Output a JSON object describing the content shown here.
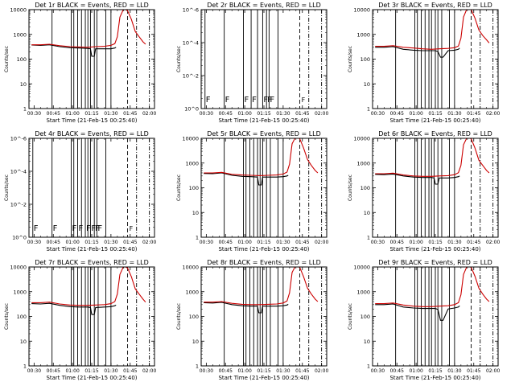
{
  "chart_data": [
    {
      "type": "line",
      "title": "Det 1r BLACK = Events, RED = LLD",
      "xlabel": "Start Time (21-Feb-15 00:25:40)",
      "ylabel": "Counts/sec",
      "x_ticks": [
        "00:30",
        "00:45",
        "01:00",
        "01:15",
        "01:30",
        "01:45",
        "02:00"
      ],
      "y_ticks": [
        "1",
        "10",
        "100",
        "1000",
        "10000"
      ],
      "ylim": [
        1,
        10000
      ],
      "ylog": true,
      "series": [
        {
          "color": "#000000",
          "x": [
            "00:28",
            "00:35",
            "00:42",
            "00:50",
            "00:58",
            "01:05",
            "01:12",
            "01:14",
            "01:15",
            "01:17",
            "01:18",
            "01:25",
            "01:30",
            "01:33",
            "01:34"
          ],
          "y": [
            370,
            360,
            380,
            320,
            290,
            280,
            270,
            260,
            130,
            130,
            260,
            260,
            260,
            280,
            300
          ]
        },
        {
          "color": "#cc0000",
          "x": [
            "00:28",
            "00:35",
            "00:42",
            "00:50",
            "00:58",
            "01:05",
            "01:12",
            "01:15",
            "01:18",
            "01:25",
            "01:30",
            "01:33",
            "01:35",
            "01:37",
            "01:40",
            "01:43",
            "01:46",
            "01:49",
            "01:52",
            "01:55",
            "01:57"
          ],
          "y": [
            380,
            380,
            400,
            350,
            320,
            310,
            300,
            310,
            320,
            330,
            360,
            420,
            800,
            5000,
            11000,
            9000,
            4000,
            1300,
            800,
            500,
            400
          ]
        }
      ],
      "vlines_solid": [
        "00:44",
        "00:59",
        "01:01",
        "01:04",
        "01:07",
        "01:10",
        "01:12",
        "01:14",
        "01:17",
        "01:19",
        "01:26",
        "01:30"
      ],
      "vlines_dash": [
        "01:43"
      ],
      "vlines_dashdot": [
        "01:50",
        "02:00"
      ],
      "flags": [],
      "flag_letter": "F",
      "bracket_label": ""
    },
    {
      "type": "line",
      "title": "Det 2r BLACK = Events, RED = LLD",
      "xlabel": "Start Time (21-Feb-15 00:25:40)",
      "ylabel": "Counts/sec",
      "x_ticks": [
        "00:30",
        "00:45",
        "01:00",
        "01:15",
        "01:30",
        "01:45",
        "02:00"
      ],
      "y_ticks": [
        "10^0",
        "10^-2",
        "10^-4",
        "10^-6"
      ],
      "ylim": [
        1,
        1e-06
      ],
      "ylog": true,
      "series": [],
      "vlines_solid": [
        "00:29",
        "00:44",
        "00:59",
        "01:05",
        "01:10",
        "01:14",
        "01:17",
        "01:19",
        "01:26"
      ],
      "vlines_dash": [
        "01:43"
      ],
      "vlines_dashdot": [
        "01:50",
        "02:00"
      ],
      "flags": [
        "00:29",
        "00:44",
        "00:59",
        "01:05",
        "01:14",
        "01:17",
        "01:19"
      ],
      "flag_letter": "F",
      "bracket_label": "F"
    },
    {
      "type": "line",
      "title": "Det 3r BLACK = Events, RED = LLD",
      "xlabel": "Start Time (21-Feb-15 00:25:40)",
      "ylabel": "Counts/sec",
      "x_ticks": [
        "00:30",
        "00:45",
        "01:00",
        "01:15",
        "01:30",
        "01:45",
        "02:00"
      ],
      "y_ticks": [
        "1",
        "10",
        "100",
        "1000",
        "10000"
      ],
      "ylim": [
        1,
        10000
      ],
      "ylog": true,
      "series": [
        {
          "color": "#000000",
          "x": [
            "00:28",
            "00:35",
            "00:42",
            "00:50",
            "00:58",
            "01:05",
            "01:12",
            "01:15",
            "01:17",
            "01:19",
            "01:21",
            "01:25",
            "01:30",
            "01:33",
            "01:34"
          ],
          "y": [
            300,
            300,
            320,
            250,
            230,
            220,
            220,
            220,
            200,
            120,
            120,
            220,
            230,
            250,
            280
          ]
        },
        {
          "color": "#cc0000",
          "x": [
            "00:28",
            "00:35",
            "00:42",
            "00:50",
            "00:58",
            "01:05",
            "01:12",
            "01:18",
            "01:25",
            "01:30",
            "01:33",
            "01:35",
            "01:37",
            "01:40",
            "01:43",
            "01:46",
            "01:49",
            "01:52",
            "01:55",
            "01:57"
          ],
          "y": [
            330,
            330,
            350,
            300,
            280,
            260,
            250,
            260,
            270,
            290,
            340,
            700,
            5000,
            12000,
            10000,
            4500,
            1500,
            900,
            600,
            450
          ]
        }
      ],
      "vlines_solid": [
        "00:44",
        "00:59",
        "01:01",
        "01:04",
        "01:07",
        "01:10",
        "01:12",
        "01:15",
        "01:17",
        "01:20",
        "01:26",
        "01:30"
      ],
      "vlines_dash": [
        "01:43"
      ],
      "vlines_dashdot": [
        "01:50",
        "02:00"
      ],
      "flags": [],
      "flag_letter": "F",
      "bracket_label": ""
    },
    {
      "type": "line",
      "title": "Det 4r BLACK = Events, RED = LLD",
      "xlabel": "Start Time (21-Feb-15 00:25:40)",
      "ylabel": "Counts/sec",
      "x_ticks": [
        "00:30",
        "00:45",
        "01:00",
        "01:15",
        "01:30",
        "01:45",
        "02:00"
      ],
      "y_ticks": [
        "10^0",
        "10^-2",
        "10^-4",
        "10^-6"
      ],
      "ylim": [
        1,
        1e-06
      ],
      "ylog": true,
      "series": [],
      "vlines_solid": [
        "00:29",
        "00:44",
        "00:59",
        "01:01",
        "01:04",
        "01:07",
        "01:10",
        "01:12",
        "01:14",
        "01:17",
        "01:19",
        "01:26"
      ],
      "vlines_dash": [
        "01:43"
      ],
      "vlines_dashdot": [
        "01:50",
        "02:00"
      ],
      "flags": [
        "00:29",
        "00:44",
        "00:59",
        "01:04",
        "01:10",
        "01:14",
        "01:17",
        "01:19"
      ],
      "flag_letter": "F",
      "bracket_label": "F"
    },
    {
      "type": "line",
      "title": "Det 5r BLACK = Events, RED = LLD",
      "xlabel": "Start Time (21-Feb-15 00:25:40)",
      "ylabel": "Counts/sec",
      "x_ticks": [
        "00:30",
        "00:45",
        "01:00",
        "01:15",
        "01:30",
        "01:45",
        "02:00"
      ],
      "y_ticks": [
        "1",
        "10",
        "100",
        "1000",
        "10000"
      ],
      "ylim": [
        1,
        10000
      ],
      "ylog": true,
      "series": [
        {
          "color": "#000000",
          "x": [
            "00:28",
            "00:35",
            "00:42",
            "00:50",
            "00:58",
            "01:05",
            "01:10",
            "01:11",
            "01:13",
            "01:14",
            "01:20",
            "01:25",
            "01:30",
            "01:33",
            "01:34"
          ],
          "y": [
            380,
            370,
            400,
            320,
            290,
            280,
            270,
            130,
            130,
            270,
            270,
            270,
            280,
            300,
            320
          ]
        },
        {
          "color": "#cc0000",
          "x": [
            "00:28",
            "00:35",
            "00:42",
            "00:50",
            "00:58",
            "01:05",
            "01:12",
            "01:18",
            "01:25",
            "01:30",
            "01:33",
            "01:35",
            "01:37",
            "01:40",
            "01:43",
            "01:46",
            "01:49",
            "01:52",
            "01:55",
            "01:57"
          ],
          "y": [
            400,
            400,
            420,
            350,
            330,
            320,
            310,
            320,
            330,
            360,
            430,
            900,
            6000,
            12000,
            9500,
            4000,
            1400,
            800,
            500,
            400
          ]
        }
      ],
      "vlines_solid": [
        "00:44",
        "00:59",
        "01:01",
        "01:04",
        "01:07",
        "01:10",
        "01:12",
        "01:14",
        "01:17",
        "01:20",
        "01:26",
        "01:30"
      ],
      "vlines_dash": [
        "01:43"
      ],
      "vlines_dashdot": [
        "01:50",
        "02:00"
      ],
      "flags": [],
      "flag_letter": "F",
      "bracket_label": ""
    },
    {
      "type": "line",
      "title": "Det 6r BLACK = Events, RED = LLD",
      "xlabel": "Start Time (21-Feb-15 00:25:40)",
      "ylabel": "Counts/sec",
      "x_ticks": [
        "00:30",
        "00:45",
        "01:00",
        "01:15",
        "01:30",
        "01:45",
        "02:00"
      ],
      "y_ticks": [
        "1",
        "10",
        "100",
        "1000",
        "10000"
      ],
      "ylim": [
        1,
        10000
      ],
      "ylog": true,
      "series": [
        {
          "color": "#000000",
          "x": [
            "00:28",
            "00:35",
            "00:42",
            "00:50",
            "00:58",
            "01:05",
            "01:12",
            "01:14",
            "01:15",
            "01:17",
            "01:18",
            "01:25",
            "01:30",
            "01:33",
            "01:34"
          ],
          "y": [
            350,
            340,
            360,
            300,
            270,
            260,
            260,
            250,
            140,
            140,
            250,
            250,
            260,
            280,
            300
          ]
        },
        {
          "color": "#cc0000",
          "x": [
            "00:28",
            "00:35",
            "00:42",
            "00:50",
            "00:58",
            "01:05",
            "01:12",
            "01:18",
            "01:25",
            "01:30",
            "01:33",
            "01:35",
            "01:37",
            "01:40",
            "01:43",
            "01:46",
            "01:49",
            "01:52",
            "01:55",
            "01:57"
          ],
          "y": [
            370,
            370,
            390,
            330,
            300,
            290,
            290,
            300,
            310,
            340,
            410,
            800,
            5500,
            11500,
            9500,
            4000,
            1300,
            800,
            500,
            400
          ]
        }
      ],
      "vlines_solid": [
        "00:44",
        "00:59",
        "01:01",
        "01:04",
        "01:07",
        "01:10",
        "01:12",
        "01:14",
        "01:17",
        "01:20",
        "01:26",
        "01:30"
      ],
      "vlines_dash": [
        "01:43"
      ],
      "vlines_dashdot": [
        "01:50",
        "02:00"
      ],
      "flags": [],
      "flag_letter": "F",
      "bracket_label": ""
    },
    {
      "type": "line",
      "title": "Det 7r BLACK = Events, RED = LLD",
      "xlabel": "Start Time (21-Feb-15 00:25:40)",
      "ylabel": "Counts/sec",
      "x_ticks": [
        "00:30",
        "00:45",
        "01:00",
        "01:15",
        "01:30",
        "01:45",
        "02:00"
      ],
      "y_ticks": [
        "1",
        "10",
        "100",
        "1000",
        "10000"
      ],
      "ylim": [
        1,
        10000
      ],
      "ylog": true,
      "series": [
        {
          "color": "#000000",
          "x": [
            "00:28",
            "00:35",
            "00:42",
            "00:50",
            "00:58",
            "01:05",
            "01:12",
            "01:14",
            "01:15",
            "01:17",
            "01:18",
            "01:25",
            "01:30",
            "01:33",
            "01:34"
          ],
          "y": [
            330,
            320,
            340,
            280,
            250,
            240,
            240,
            230,
            120,
            120,
            230,
            240,
            250,
            270,
            290
          ]
        },
        {
          "color": "#cc0000",
          "x": [
            "00:28",
            "00:35",
            "00:42",
            "00:50",
            "00:58",
            "01:05",
            "01:12",
            "01:18",
            "01:25",
            "01:30",
            "01:33",
            "01:35",
            "01:37",
            "01:40",
            "01:43",
            "01:46",
            "01:49",
            "01:52",
            "01:55",
            "01:57"
          ],
          "y": [
            360,
            360,
            380,
            320,
            290,
            280,
            280,
            290,
            300,
            330,
            400,
            800,
            5000,
            11000,
            9000,
            4000,
            1300,
            800,
            500,
            380
          ]
        }
      ],
      "vlines_solid": [
        "00:44",
        "00:59",
        "01:01",
        "01:04",
        "01:07",
        "01:10",
        "01:12",
        "01:14",
        "01:17",
        "01:20",
        "01:26",
        "01:30"
      ],
      "vlines_dash": [
        "01:43"
      ],
      "vlines_dashdot": [
        "01:50",
        "02:00"
      ],
      "flags": [],
      "flag_letter": "F",
      "bracket_label": ""
    },
    {
      "type": "line",
      "title": "Det 8r BLACK = Events, RED = LLD",
      "xlabel": "Start Time (21-Feb-15 00:25:40)",
      "ylabel": "Counts/sec",
      "x_ticks": [
        "00:30",
        "00:45",
        "01:00",
        "01:15",
        "01:30",
        "01:45",
        "02:00"
      ],
      "y_ticks": [
        "1",
        "10",
        "100",
        "1000",
        "10000"
      ],
      "ylim": [
        1,
        10000
      ],
      "ylog": true,
      "series": [
        {
          "color": "#000000",
          "x": [
            "00:28",
            "00:35",
            "00:42",
            "00:50",
            "00:58",
            "01:05",
            "01:10",
            "01:11",
            "01:13",
            "01:14",
            "01:20",
            "01:25",
            "01:30",
            "01:33",
            "01:34"
          ],
          "y": [
            360,
            350,
            370,
            300,
            270,
            260,
            260,
            140,
            140,
            260,
            260,
            260,
            270,
            290,
            310
          ]
        },
        {
          "color": "#cc0000",
          "x": [
            "00:28",
            "00:35",
            "00:42",
            "00:50",
            "00:58",
            "01:05",
            "01:12",
            "01:18",
            "01:25",
            "01:30",
            "01:33",
            "01:35",
            "01:37",
            "01:40",
            "01:43",
            "01:46",
            "01:49",
            "01:52",
            "01:55",
            "01:57"
          ],
          "y": [
            380,
            380,
            400,
            340,
            310,
            300,
            300,
            310,
            320,
            350,
            420,
            900,
            6000,
            12000,
            9500,
            4000,
            1400,
            800,
            500,
            400
          ]
        }
      ],
      "vlines_solid": [
        "00:44",
        "00:59",
        "01:01",
        "01:04",
        "01:07",
        "01:10",
        "01:12",
        "01:14",
        "01:17",
        "01:20",
        "01:26",
        "01:30"
      ],
      "vlines_dash": [
        "01:43"
      ],
      "vlines_dashdot": [
        "01:50",
        "02:00"
      ],
      "flags": [],
      "flag_letter": "F",
      "bracket_label": ""
    },
    {
      "type": "line",
      "title": "Det 9r BLACK = Events, RED = LLD",
      "xlabel": "Start Time (21-Feb-15 00:25:40)",
      "ylabel": "Counts/sec",
      "x_ticks": [
        "00:30",
        "00:45",
        "01:00",
        "01:15",
        "01:30",
        "01:45",
        "02:00"
      ],
      "y_ticks": [
        "1",
        "10",
        "100",
        "1000",
        "10000"
      ],
      "ylim": [
        1,
        10000
      ],
      "ylog": true,
      "series": [
        {
          "color": "#000000",
          "x": [
            "00:28",
            "00:35",
            "00:42",
            "00:50",
            "00:58",
            "01:05",
            "01:12",
            "01:15",
            "01:17",
            "01:19",
            "01:21",
            "01:25",
            "01:30",
            "01:33",
            "01:34"
          ],
          "y": [
            300,
            300,
            320,
            240,
            220,
            210,
            210,
            210,
            190,
            70,
            70,
            200,
            220,
            240,
            270
          ]
        },
        {
          "color": "#cc0000",
          "x": [
            "00:28",
            "00:35",
            "00:42",
            "00:50",
            "00:58",
            "01:05",
            "01:12",
            "01:18",
            "01:25",
            "01:30",
            "01:33",
            "01:35",
            "01:37",
            "01:40",
            "01:43",
            "01:46",
            "01:49",
            "01:52",
            "01:55",
            "01:57"
          ],
          "y": [
            330,
            330,
            350,
            290,
            260,
            250,
            250,
            260,
            270,
            300,
            360,
            750,
            5000,
            11500,
            9500,
            4200,
            1400,
            800,
            500,
            400
          ]
        }
      ],
      "vlines_solid": [
        "00:44",
        "00:59",
        "01:01",
        "01:04",
        "01:07",
        "01:10",
        "01:12",
        "01:15",
        "01:17",
        "01:20",
        "01:26",
        "01:30"
      ],
      "vlines_dash": [
        "01:43"
      ],
      "vlines_dashdot": [
        "01:50",
        "02:00"
      ],
      "flags": [],
      "flag_letter": "F",
      "bracket_label": ""
    }
  ]
}
